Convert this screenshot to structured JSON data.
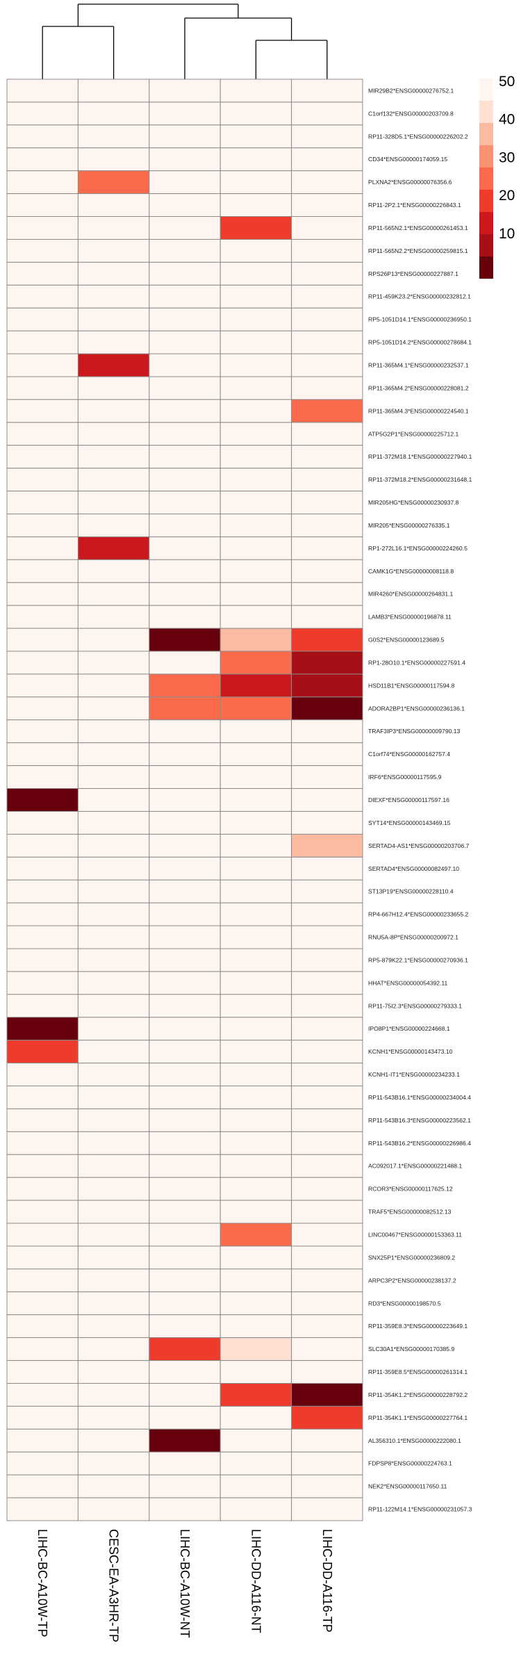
{
  "chart_data": {
    "type": "heatmap",
    "columns": [
      "LIHC-BC-A10W-TP",
      "CESC-EA-A3HR-TP",
      "LIHC-BC-A10W-NT",
      "LIHC-DD-A116-NT",
      "LIHC-DD-A116-TP"
    ],
    "rows": [
      "MIR29B2*ENSG00000276752.1",
      "C1orf132*ENSG00000203709.8",
      "RP11-328D5.1*ENSG00000226202.2",
      "CD34*ENSG00000174059.15",
      "PLXNA2*ENSG00000076356.6",
      "RP11-2P2.1*ENSG00000226843.1",
      "RP11-565N2.1*ENSG00000261453.1",
      "RP11-565N2.2*ENSG00000259815.1",
      "RPS26P13*ENSG00000227887.1",
      "RP11-459K23.2*ENSG00000232812.1",
      "RP5-1051D14.1*ENSG00000236950.1",
      "RP5-1051D14.2*ENSG00000278684.1",
      "RP11-365M4.1*ENSG00000232537.1",
      "RP11-365M4.2*ENSG00000228081.2",
      "RP11-365M4.3*ENSG00000224540.1",
      "ATP5G2P1*ENSG00000225712.1",
      "RP11-372M18.1*ENSG00000227940.1",
      "RP11-372M18.2*ENSG00000231648.1",
      "MIR205HG*ENSG00000230937.8",
      "MIR205*ENSG00000276335.1",
      "RP1-272L16.1*ENSG00000224260.5",
      "CAMK1G*ENSG00000008118.8",
      "MIR4260*ENSG00000264831.1",
      "LAMB3*ENSG00000196878.11",
      "G0S2*ENSG00000123689.5",
      "RP1-28O10.1*ENSG00000227591.4",
      "HSD11B1*ENSG00000117594.8",
      "ADORA2BP1*ENSG00000236136.1",
      "TRAF3IP3*ENSG00000009790.13",
      "C1orf74*ENSG00000162757.4",
      "IRF6*ENSG00000117595.9",
      "DIEXF*ENSG00000117597.16",
      "SYT14*ENSG00000143469.15",
      "SERTAD4-AS1*ENSG00000203706.7",
      "SERTAD4*ENSG00000082497.10",
      "ST13P19*ENSG00000228110.4",
      "RP4-667H12.4*ENSG00000233655.2",
      "RNU5A-8P*ENSG00000200972.1",
      "RP5-879K22.1*ENSG00000270936.1",
      "HHAT*ENSG00000054392.11",
      "RP11-75I2.3*ENSG00000279333.1",
      "IPO8P1*ENSG00000224668.1",
      "KCNH1*ENSG00000143473.10",
      "KCNH1-IT1*ENSG00000234233.1",
      "RP11-543B16.1*ENSG00000234004.4",
      "RP11-543B16.3*ENSG00000223562.1",
      "RP11-543B16.2*ENSG00000226986.4",
      "AC092017.1*ENSG00000221488.1",
      "RCOR3*ENSG00000117625.12",
      "TRAF5*ENSG00000082512.13",
      "LINC00467*ENSG00000153363.11",
      "SNX25P1*ENSG00000236809.2",
      "ARPC3P2*ENSG00000238137.2",
      "RD3*ENSG00000198570.5",
      "RP11-359E8.3*ENSG00000223649.1",
      "SLC30A1*ENSG00000170385.9",
      "RP11-359E8.5*ENSG00000261314.1",
      "RP11-354K1.2*ENSG00000228792.2",
      "RP11-354K1.1*ENSG00000227764.1",
      "AL356310.1*ENSG00000222080.1",
      "FDPSP8*ENSG00000224763.1",
      "NEK2*ENSG00000117650.11",
      "RP11-122M14.1*ENSG00000231057.3"
    ],
    "values": [
      [
        50,
        50,
        50,
        50,
        50
      ],
      [
        50,
        50,
        50,
        50,
        50
      ],
      [
        50,
        50,
        50,
        50,
        50
      ],
      [
        50,
        50,
        50,
        50,
        50
      ],
      [
        50,
        27,
        50,
        50,
        50
      ],
      [
        50,
        50,
        50,
        50,
        50
      ],
      [
        50,
        50,
        50,
        18,
        50
      ],
      [
        50,
        50,
        50,
        50,
        50
      ],
      [
        50,
        50,
        50,
        50,
        50
      ],
      [
        50,
        50,
        50,
        50,
        50
      ],
      [
        50,
        50,
        50,
        50,
        50
      ],
      [
        50,
        50,
        50,
        50,
        50
      ],
      [
        50,
        12,
        50,
        50,
        50
      ],
      [
        50,
        50,
        50,
        50,
        50
      ],
      [
        50,
        50,
        50,
        50,
        24
      ],
      [
        50,
        50,
        50,
        50,
        50
      ],
      [
        50,
        50,
        50,
        50,
        50
      ],
      [
        50,
        50,
        50,
        50,
        50
      ],
      [
        50,
        50,
        50,
        50,
        50
      ],
      [
        50,
        50,
        50,
        50,
        50
      ],
      [
        50,
        12,
        50,
        50,
        50
      ],
      [
        50,
        50,
        50,
        50,
        50
      ],
      [
        50,
        50,
        50,
        50,
        50
      ],
      [
        50,
        50,
        50,
        50,
        50
      ],
      [
        50,
        50,
        1,
        36,
        18
      ],
      [
        50,
        50,
        50,
        24,
        7
      ],
      [
        50,
        50,
        24,
        12,
        7
      ],
      [
        50,
        50,
        24,
        24,
        1
      ],
      [
        50,
        50,
        50,
        50,
        50
      ],
      [
        50,
        50,
        50,
        50,
        50
      ],
      [
        50,
        50,
        50,
        50,
        50
      ],
      [
        1,
        50,
        50,
        50,
        50
      ],
      [
        50,
        50,
        50,
        50,
        50
      ],
      [
        50,
        50,
        50,
        50,
        36
      ],
      [
        50,
        50,
        50,
        50,
        50
      ],
      [
        50,
        50,
        50,
        50,
        50
      ],
      [
        50,
        50,
        50,
        50,
        50
      ],
      [
        50,
        50,
        50,
        50,
        50
      ],
      [
        50,
        50,
        50,
        50,
        50
      ],
      [
        50,
        50,
        50,
        50,
        50
      ],
      [
        50,
        50,
        50,
        50,
        50
      ],
      [
        1,
        50,
        50,
        50,
        50
      ],
      [
        18,
        50,
        50,
        50,
        50
      ],
      [
        50,
        50,
        50,
        50,
        50
      ],
      [
        50,
        50,
        50,
        50,
        50
      ],
      [
        50,
        50,
        50,
        50,
        50
      ],
      [
        50,
        50,
        50,
        50,
        50
      ],
      [
        50,
        50,
        50,
        50,
        50
      ],
      [
        50,
        50,
        50,
        50,
        50
      ],
      [
        50,
        50,
        50,
        50,
        50
      ],
      [
        50,
        50,
        50,
        27,
        50
      ],
      [
        50,
        50,
        50,
        50,
        50
      ],
      [
        50,
        50,
        50,
        50,
        50
      ],
      [
        50,
        50,
        50,
        50,
        50
      ],
      [
        50,
        50,
        50,
        50,
        50
      ],
      [
        50,
        50,
        18,
        44,
        50
      ],
      [
        50,
        50,
        50,
        50,
        50
      ],
      [
        50,
        50,
        50,
        18,
        1
      ],
      [
        50,
        50,
        50,
        50,
        18
      ],
      [
        50,
        50,
        1,
        50,
        50
      ],
      [
        50,
        50,
        50,
        50,
        50
      ],
      [
        50,
        50,
        50,
        50,
        50
      ],
      [
        50,
        50,
        50,
        50,
        50
      ]
    ],
    "legend": {
      "ticks": [
        50,
        40,
        30,
        20,
        10
      ],
      "colors": [
        "#FFF5F0",
        "#FEE0D2",
        "#FCBBA1",
        "#FC9272",
        "#FB6A4A",
        "#EF3B2C",
        "#CB181D",
        "#A50F15",
        "#67000D"
      ],
      "position": "top-right"
    },
    "column_dendrogram": true,
    "title": "",
    "xlabel": "",
    "ylabel": ""
  }
}
